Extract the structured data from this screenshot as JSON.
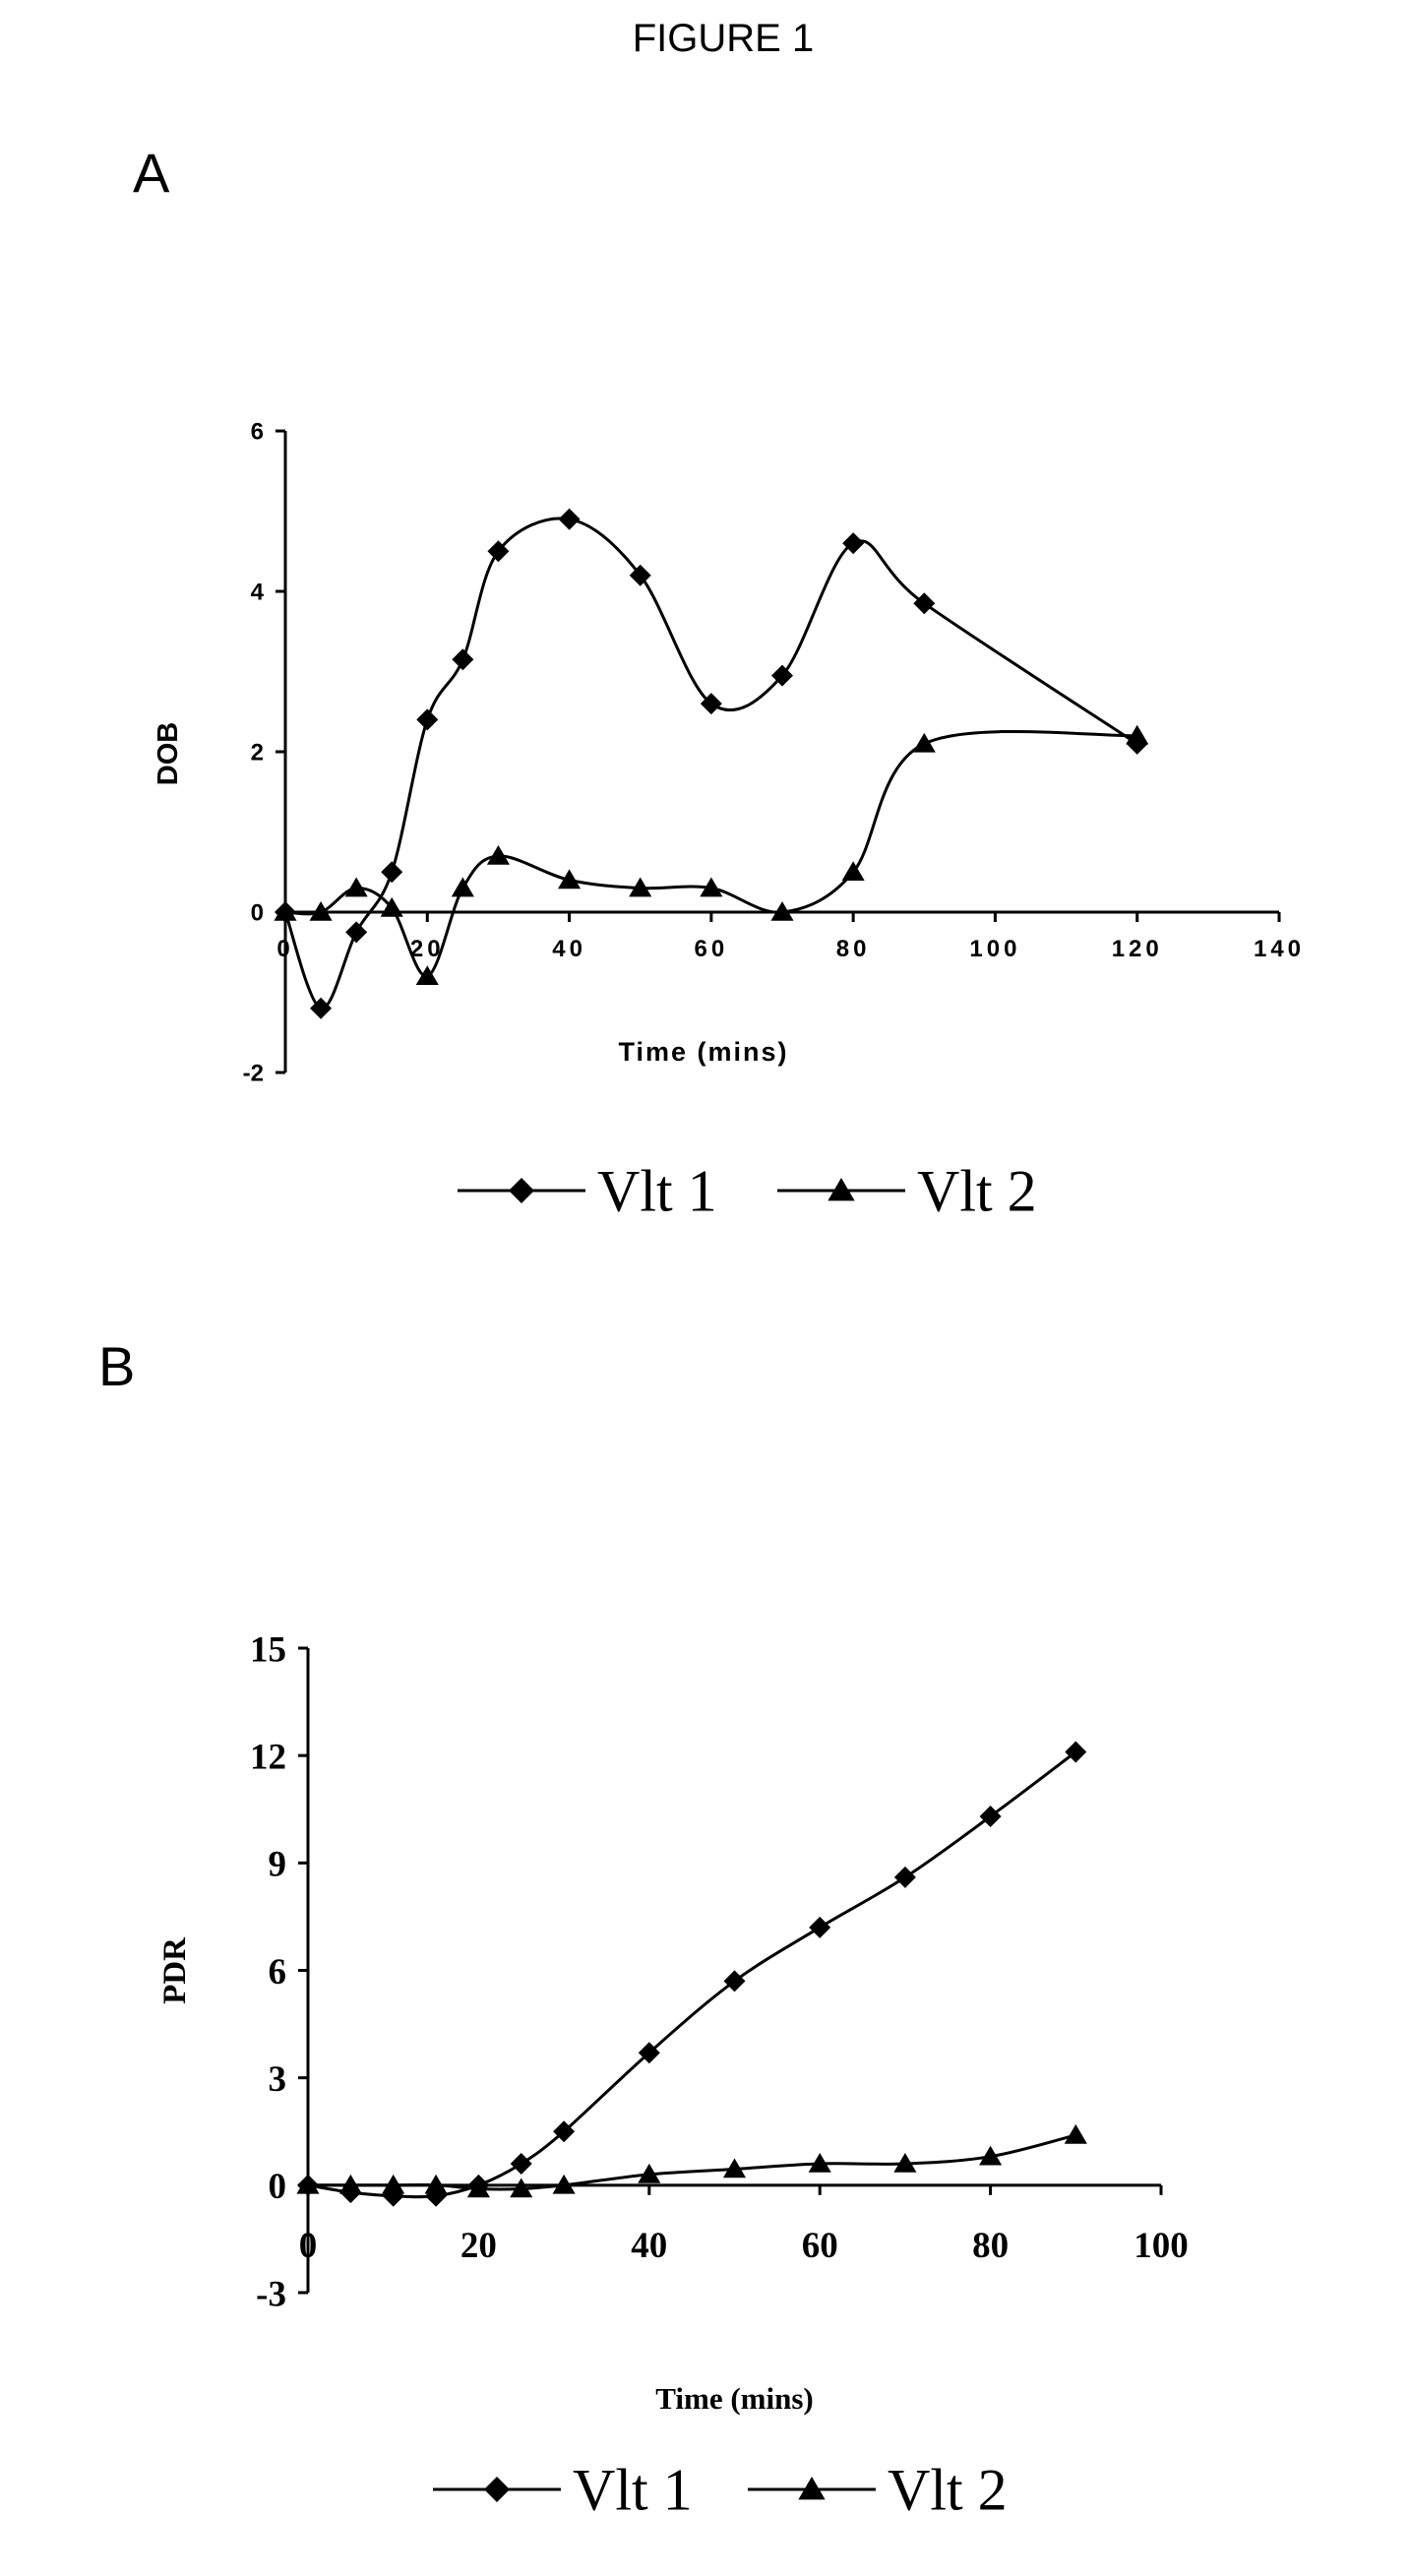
{
  "figure_title": "FIGURE 1",
  "chart_data": [
    {
      "panel_label": "A",
      "type": "line",
      "xlabel": "Time (mins)",
      "ylabel": "DOB",
      "xlim": [
        0,
        140
      ],
      "ylim": [
        -2,
        6
      ],
      "xticks": [
        0,
        20,
        40,
        60,
        80,
        100,
        120,
        140
      ],
      "yticks": [
        -2,
        0,
        2,
        4,
        6
      ],
      "grid": false,
      "legend": "bottom",
      "series": [
        {
          "name": "Vlt 1",
          "marker": "diamond",
          "x": [
            0,
            5,
            10,
            15,
            20,
            25,
            30,
            40,
            50,
            60,
            70,
            80,
            90,
            120
          ],
          "y": [
            0,
            -1.2,
            -0.25,
            0.5,
            2.4,
            3.15,
            4.5,
            4.9,
            4.2,
            2.6,
            2.95,
            4.6,
            3.85,
            2.1
          ]
        },
        {
          "name": "Vlt 2",
          "marker": "triangle",
          "x": [
            0,
            5,
            10,
            15,
            20,
            25,
            30,
            40,
            50,
            60,
            70,
            80,
            90,
            120
          ],
          "y": [
            0,
            0,
            0.3,
            0.05,
            -0.8,
            0.3,
            0.7,
            0.4,
            0.3,
            0.3,
            0,
            0.5,
            2.1,
            2.2
          ]
        }
      ]
    },
    {
      "panel_label": "B",
      "type": "line",
      "xlabel": "Time (mins)",
      "ylabel": "PDR",
      "xlim": [
        0,
        100
      ],
      "ylim": [
        -3,
        15
      ],
      "xticks": [
        0,
        20,
        40,
        60,
        80,
        100
      ],
      "yticks": [
        -3,
        0,
        3,
        6,
        9,
        12,
        15
      ],
      "grid": false,
      "legend": "bottom",
      "series": [
        {
          "name": "Vlt 1",
          "marker": "diamond",
          "x": [
            0,
            5,
            10,
            15,
            20,
            25,
            30,
            40,
            50,
            60,
            70,
            80,
            90
          ],
          "y": [
            0,
            -0.2,
            -0.3,
            -0.3,
            0,
            0.6,
            1.5,
            3.7,
            5.7,
            7.2,
            8.6,
            10.3,
            12.1
          ]
        },
        {
          "name": "Vlt 2",
          "marker": "triangle",
          "x": [
            0,
            5,
            10,
            15,
            20,
            25,
            30,
            40,
            50,
            60,
            70,
            80,
            90
          ],
          "y": [
            0,
            0,
            0,
            0,
            -0.1,
            -0.1,
            0,
            0.3,
            0.45,
            0.6,
            0.6,
            0.8,
            1.4
          ]
        }
      ]
    }
  ]
}
